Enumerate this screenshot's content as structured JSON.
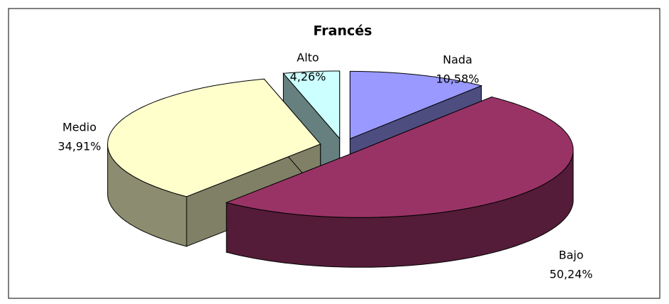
{
  "chart_data": {
    "type": "pie",
    "title": "Francés",
    "categories": [
      "Nada",
      "Bajo",
      "Medio",
      "Alto"
    ],
    "values": [
      10.58,
      50.24,
      34.91,
      4.26
    ],
    "value_labels": [
      "10,58%",
      "50,24%",
      "34,91%",
      "4,26%"
    ],
    "colors": [
      "#9999ff",
      "#993366",
      "#ffffcc",
      "#ccffff"
    ]
  }
}
